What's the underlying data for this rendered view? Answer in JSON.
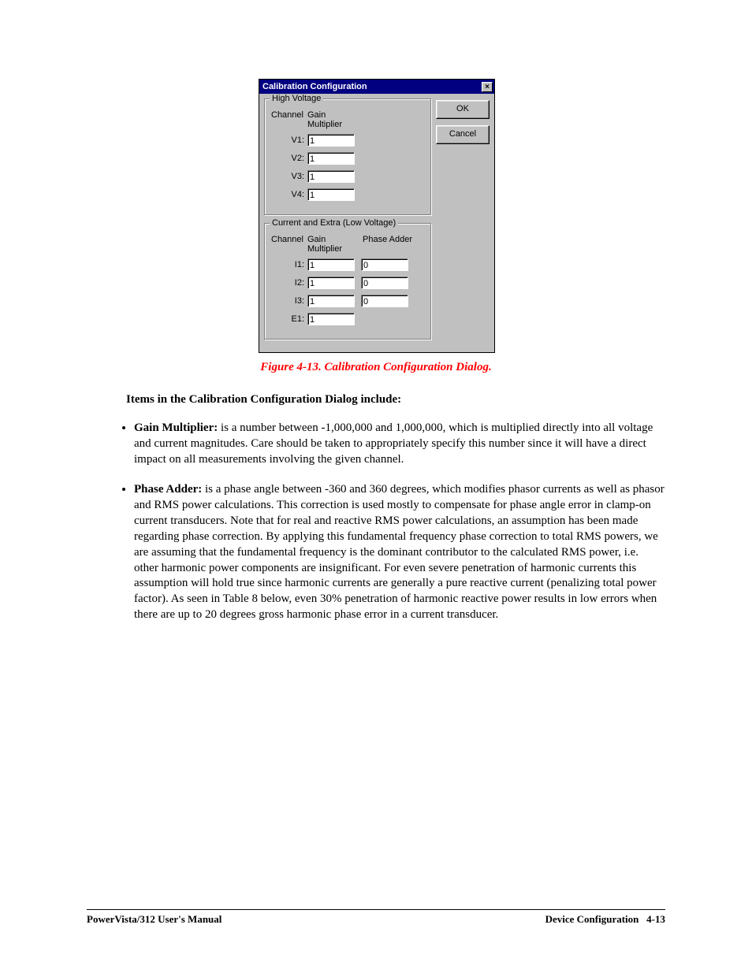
{
  "dialog": {
    "title": "Calibration Configuration",
    "buttons": {
      "ok": "OK",
      "cancel": "Cancel"
    },
    "group_hv": {
      "title": "High Voltage",
      "headers": {
        "channel": "Channel",
        "gain": "Gain Multiplier"
      },
      "rows": [
        {
          "label": "V1:",
          "gain": "1"
        },
        {
          "label": "V2:",
          "gain": "1"
        },
        {
          "label": "V3:",
          "gain": "1"
        },
        {
          "label": "V4:",
          "gain": "1"
        }
      ]
    },
    "group_lv": {
      "title": "Current and Extra (Low Voltage)",
      "headers": {
        "channel": "Channel",
        "gain": "Gain Multiplier",
        "phase": "Phase Adder"
      },
      "rows": [
        {
          "label": "I1:",
          "gain": "1",
          "phase": "0"
        },
        {
          "label": "I2:",
          "gain": "1",
          "phase": "0"
        },
        {
          "label": "I3:",
          "gain": "1",
          "phase": "0"
        },
        {
          "label": "E1:",
          "gain": "1",
          "phase": ""
        }
      ]
    },
    "colors": {
      "titlebar_bg": "#000080",
      "titlebar_fg": "#ffffff",
      "face": "#c0c0c0",
      "input_bg": "#ffffff"
    }
  },
  "caption": "Figure 4-13.  Calibration Configuration Dialog.",
  "intro": "Items in the Calibration Configuration Dialog include:",
  "bullets": [
    {
      "term": "Gain Multiplier:",
      "text": "  is a number between -1,000,000 and 1,000,000, which is multiplied directly into all voltage and current magnitudes.  Care should be taken to appropriately specify this number since it will have a direct impact on all measurements involving the given channel."
    },
    {
      "term": "Phase Adder:",
      "text": "  is a phase angle between -360 and 360 degrees, which modifies phasor currents as well as phasor and RMS power calculations.  This correction is used mostly to compensate for phase angle error in clamp-on current transducers.  Note that for real and reactive RMS power calculations, an assumption has been made regarding phase correction.  By applying this fundamental frequency phase correction to total RMS powers, we are assuming that the fundamental frequency is the dominant contributor to the calculated RMS power, i.e. other harmonic power components are insignificant.  For even severe penetration of harmonic currents this assumption will hold true since harmonic currents are generally a pure reactive current (penalizing total power factor).  As seen in Table 8 below, even 30% penetration of harmonic reactive power results in low errors when there are up to 20 degrees gross harmonic phase error in a current transducer."
    }
  ],
  "footer": {
    "left": "PowerVista/312 User's Manual",
    "right_section": "Device Configuration",
    "right_page": "4-13"
  }
}
